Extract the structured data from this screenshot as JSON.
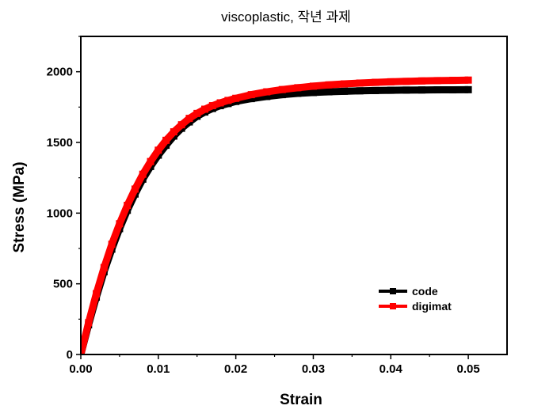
{
  "chart_data": {
    "type": "line",
    "title": "viscoplastic, 작년 과제",
    "xlabel": "Strain",
    "ylabel": "Stress (MPa)",
    "xlim": [
      0.0,
      0.055
    ],
    "ylim": [
      0,
      2250
    ],
    "xticks": [
      0.0,
      0.01,
      0.02,
      0.03,
      0.04,
      0.05
    ],
    "xtick_labels": [
      "0.00",
      "0.01",
      "0.02",
      "0.03",
      "0.04",
      "0.05"
    ],
    "yticks": [
      0,
      500,
      1000,
      1500,
      2000
    ],
    "ytick_labels": [
      "0",
      "500",
      "1000",
      "1500",
      "2000"
    ],
    "grid": false,
    "legend_position": "lower-right",
    "series": [
      {
        "name": "code",
        "color": "#000000",
        "x": [
          0.0,
          0.001,
          0.002,
          0.003,
          0.004,
          0.005,
          0.006,
          0.007,
          0.008,
          0.009,
          0.01,
          0.011,
          0.012,
          0.013,
          0.014,
          0.015,
          0.016,
          0.017,
          0.018,
          0.019,
          0.02,
          0.022,
          0.024,
          0.026,
          0.028,
          0.03,
          0.032,
          0.034,
          0.036,
          0.038,
          0.04,
          0.042,
          0.044,
          0.046,
          0.048,
          0.05
        ],
        "y": [
          0,
          210,
          405,
          585,
          745,
          890,
          1020,
          1135,
          1240,
          1330,
          1410,
          1480,
          1545,
          1600,
          1645,
          1685,
          1715,
          1740,
          1760,
          1775,
          1790,
          1810,
          1825,
          1838,
          1847,
          1853,
          1858,
          1862,
          1865,
          1867,
          1869,
          1870,
          1871,
          1872,
          1872,
          1873
        ]
      },
      {
        "name": "digimat",
        "color": "#ff0000",
        "x": [
          0.0,
          0.001,
          0.002,
          0.003,
          0.004,
          0.005,
          0.006,
          0.007,
          0.008,
          0.009,
          0.01,
          0.011,
          0.012,
          0.013,
          0.014,
          0.015,
          0.016,
          0.017,
          0.018,
          0.019,
          0.02,
          0.022,
          0.024,
          0.026,
          0.028,
          0.03,
          0.032,
          0.034,
          0.036,
          0.038,
          0.04,
          0.042,
          0.044,
          0.046,
          0.048,
          0.05
        ],
        "y": [
          0,
          225,
          430,
          615,
          780,
          925,
          1055,
          1170,
          1275,
          1365,
          1445,
          1515,
          1575,
          1625,
          1670,
          1705,
          1735,
          1760,
          1780,
          1797,
          1812,
          1838,
          1858,
          1874,
          1887,
          1898,
          1907,
          1914,
          1920,
          1925,
          1929,
          1932,
          1935,
          1937,
          1939,
          1941
        ]
      }
    ]
  }
}
